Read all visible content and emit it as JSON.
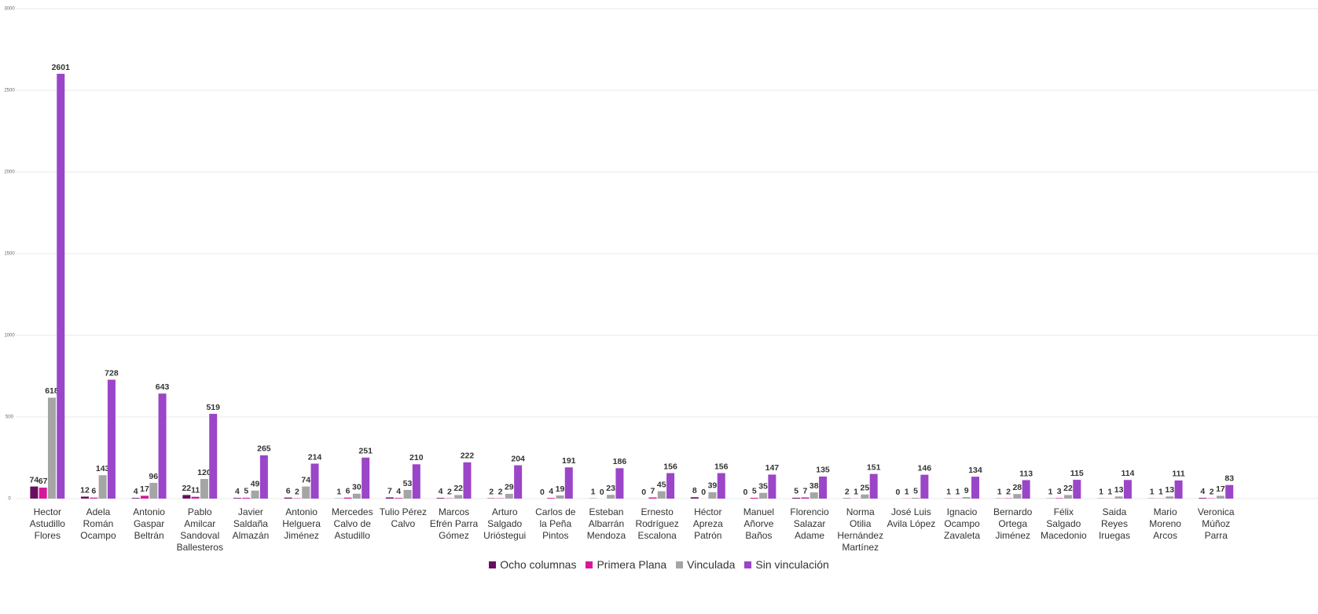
{
  "chart_data": {
    "type": "bar",
    "categories": [
      "Hector Astudillo Flores",
      "Adela Román Ocampo",
      "Antonio Gaspar Beltrán",
      "Pablo Amilcar Sandoval Ballesteros",
      "Javier Saldaña Almazán",
      "Antonio Helguera Jiménez",
      "Mercedes Calvo de Astudillo",
      "Tulio Pérez Calvo",
      "Marcos Efrén Parra Gómez",
      "Arturo Salgado Urióstegui",
      "Carlos de la Peña Pintos",
      "Esteban Albarrán Mendoza",
      "Ernesto Rodríguez Escalona",
      "Héctor Apreza Patrón",
      "Manuel Añorve Baños",
      "Florencio Salazar Adame",
      "Norma Otilia Hernández Martínez",
      "José Luis Avila López",
      "Ignacio Ocampo Zavaleta",
      "Bernardo Ortega Jiménez",
      "Félix Salgado Macedonio",
      "Saida Reyes Iruegas",
      "Mario Moreno Arcos",
      "Veronica Múñoz Parra"
    ],
    "series": [
      {
        "name": "Ocho columnas",
        "color": "#6a0f5f",
        "values": [
          74,
          12,
          4,
          22,
          4,
          6,
          1,
          7,
          4,
          2,
          0,
          1,
          0,
          8,
          0,
          5,
          2,
          0,
          1,
          1,
          1,
          1,
          1,
          4
        ]
      },
      {
        "name": "Primera Plana",
        "color": "#d6179b",
        "values": [
          67,
          6,
          17,
          11,
          5,
          2,
          6,
          4,
          2,
          2,
          4,
          0,
          7,
          0,
          5,
          7,
          1,
          1,
          1,
          2,
          3,
          1,
          1,
          2
        ]
      },
      {
        "name": "Vinculada",
        "color": "#a5a5a5",
        "values": [
          618,
          143,
          96,
          120,
          49,
          74,
          30,
          53,
          22,
          29,
          19,
          23,
          45,
          39,
          35,
          38,
          25,
          5,
          9,
          28,
          22,
          13,
          13,
          17
        ]
      },
      {
        "name": "Sin vinculación",
        "color": "#9b45c9",
        "values": [
          2601,
          728,
          643,
          519,
          265,
          214,
          251,
          210,
          222,
          204,
          191,
          186,
          156,
          156,
          147,
          135,
          151,
          146,
          134,
          113,
          115,
          114,
          111,
          83
        ]
      }
    ],
    "ylim": [
      0,
      3000
    ],
    "yticks": [
      0,
      500,
      1000,
      1500,
      2000,
      2500,
      3000
    ],
    "grid": true,
    "legend": "bottom"
  }
}
